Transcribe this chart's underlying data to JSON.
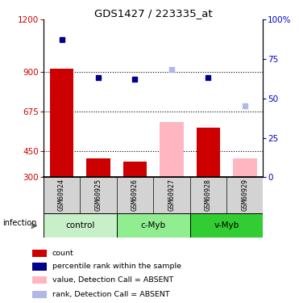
{
  "title": "GDS1427 / 223335_at",
  "samples": [
    "GSM60924",
    "GSM60925",
    "GSM60926",
    "GSM60927",
    "GSM60928",
    "GSM60929"
  ],
  "groups": [
    {
      "name": "control",
      "indices": [
        0,
        1
      ],
      "color": "#c8f0c8"
    },
    {
      "name": "c-Myb",
      "indices": [
        2,
        3
      ],
      "color": "#90ee90"
    },
    {
      "name": "v-Myb",
      "indices": [
        4,
        5
      ],
      "color": "#32cd32"
    }
  ],
  "bar_values": [
    920,
    410,
    390,
    615,
    585,
    410
  ],
  "bar_colors": [
    "#cc0000",
    "#cc0000",
    "#cc0000",
    "#ffb6c1",
    "#cc0000",
    "#ffb6c1"
  ],
  "dot_values_left": [
    1085,
    870,
    860,
    null,
    870,
    null
  ],
  "dot_colors": [
    "#00008b",
    "#00008b",
    "#00008b",
    null,
    "#00008b",
    null
  ],
  "rank_values_left": [
    null,
    null,
    null,
    915,
    null,
    710
  ],
  "rank_colors": [
    null,
    null,
    null,
    "#b0b8e8",
    null,
    "#b0b8e8"
  ],
  "ylim_left": [
    300,
    1200
  ],
  "ylim_right": [
    0,
    100
  ],
  "yticks_left": [
    300,
    450,
    675,
    900,
    1200
  ],
  "yticks_right": [
    0,
    25,
    50,
    75,
    100
  ],
  "ylabel_left_color": "#cc0000",
  "ylabel_right_color": "#0000cc",
  "hlines": [
    450,
    675,
    900
  ],
  "bar_bottom": 300,
  "sample_label_color": "#c8c8c8",
  "legend_items": [
    {
      "color": "#cc0000",
      "label": "count"
    },
    {
      "color": "#00008b",
      "label": "percentile rank within the sample"
    },
    {
      "color": "#ffb6c1",
      "label": "value, Detection Call = ABSENT"
    },
    {
      "color": "#b0b8e8",
      "label": "rank, Detection Call = ABSENT"
    }
  ]
}
